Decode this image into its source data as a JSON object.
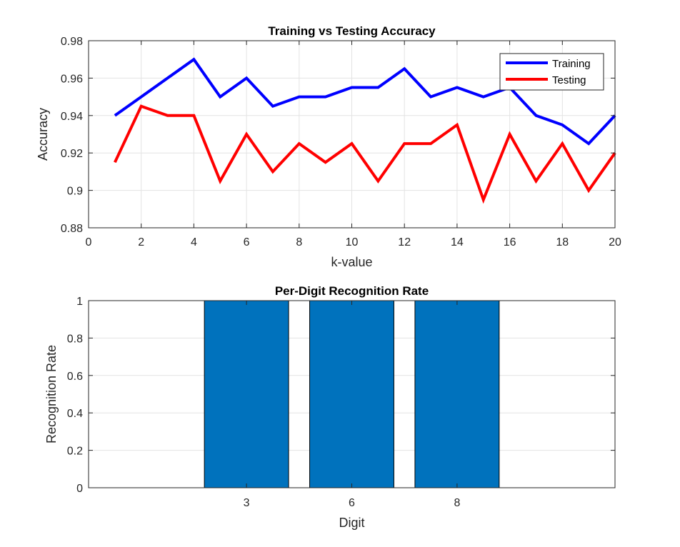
{
  "chart_data": [
    {
      "type": "line",
      "title": "Training vs Testing Accuracy",
      "xlabel": "k-value",
      "ylabel": "Accuracy",
      "xlim": [
        0,
        20
      ],
      "ylim": [
        0.88,
        0.98
      ],
      "xticks": [
        0,
        2,
        4,
        6,
        8,
        10,
        12,
        14,
        16,
        18,
        20
      ],
      "yticks": [
        0.88,
        0.9,
        0.92,
        0.94,
        0.96,
        0.98
      ],
      "grid": true,
      "legend_position": "top-right",
      "x": [
        1,
        2,
        3,
        4,
        5,
        6,
        7,
        8,
        9,
        10,
        11,
        12,
        13,
        14,
        15,
        16,
        17,
        18,
        19,
        20
      ],
      "series": [
        {
          "name": "Training",
          "color": "#0000ff",
          "values": [
            0.94,
            0.95,
            0.96,
            0.97,
            0.95,
            0.96,
            0.945,
            0.95,
            0.95,
            0.955,
            0.955,
            0.965,
            0.95,
            0.955,
            0.95,
            0.955,
            0.94,
            0.935,
            0.925,
            0.94
          ]
        },
        {
          "name": "Testing",
          "color": "#ff0000",
          "values": [
            0.915,
            0.945,
            0.94,
            0.94,
            0.905,
            0.93,
            0.91,
            0.925,
            0.915,
            0.925,
            0.905,
            0.925,
            0.925,
            0.935,
            0.895,
            0.93,
            0.905,
            0.925,
            0.9,
            0.92
          ]
        }
      ]
    },
    {
      "type": "bar",
      "title": "Per-Digit Recognition Rate",
      "xlabel": "Digit",
      "ylabel": "Recognition Rate",
      "categories": [
        "3",
        "6",
        "8"
      ],
      "values": [
        1,
        1,
        1
      ],
      "ylim": [
        0,
        1
      ],
      "yticks": [
        0,
        0.2,
        0.4,
        0.6,
        0.8,
        1
      ],
      "bar_color": "#0072bd",
      "grid": true
    }
  ]
}
